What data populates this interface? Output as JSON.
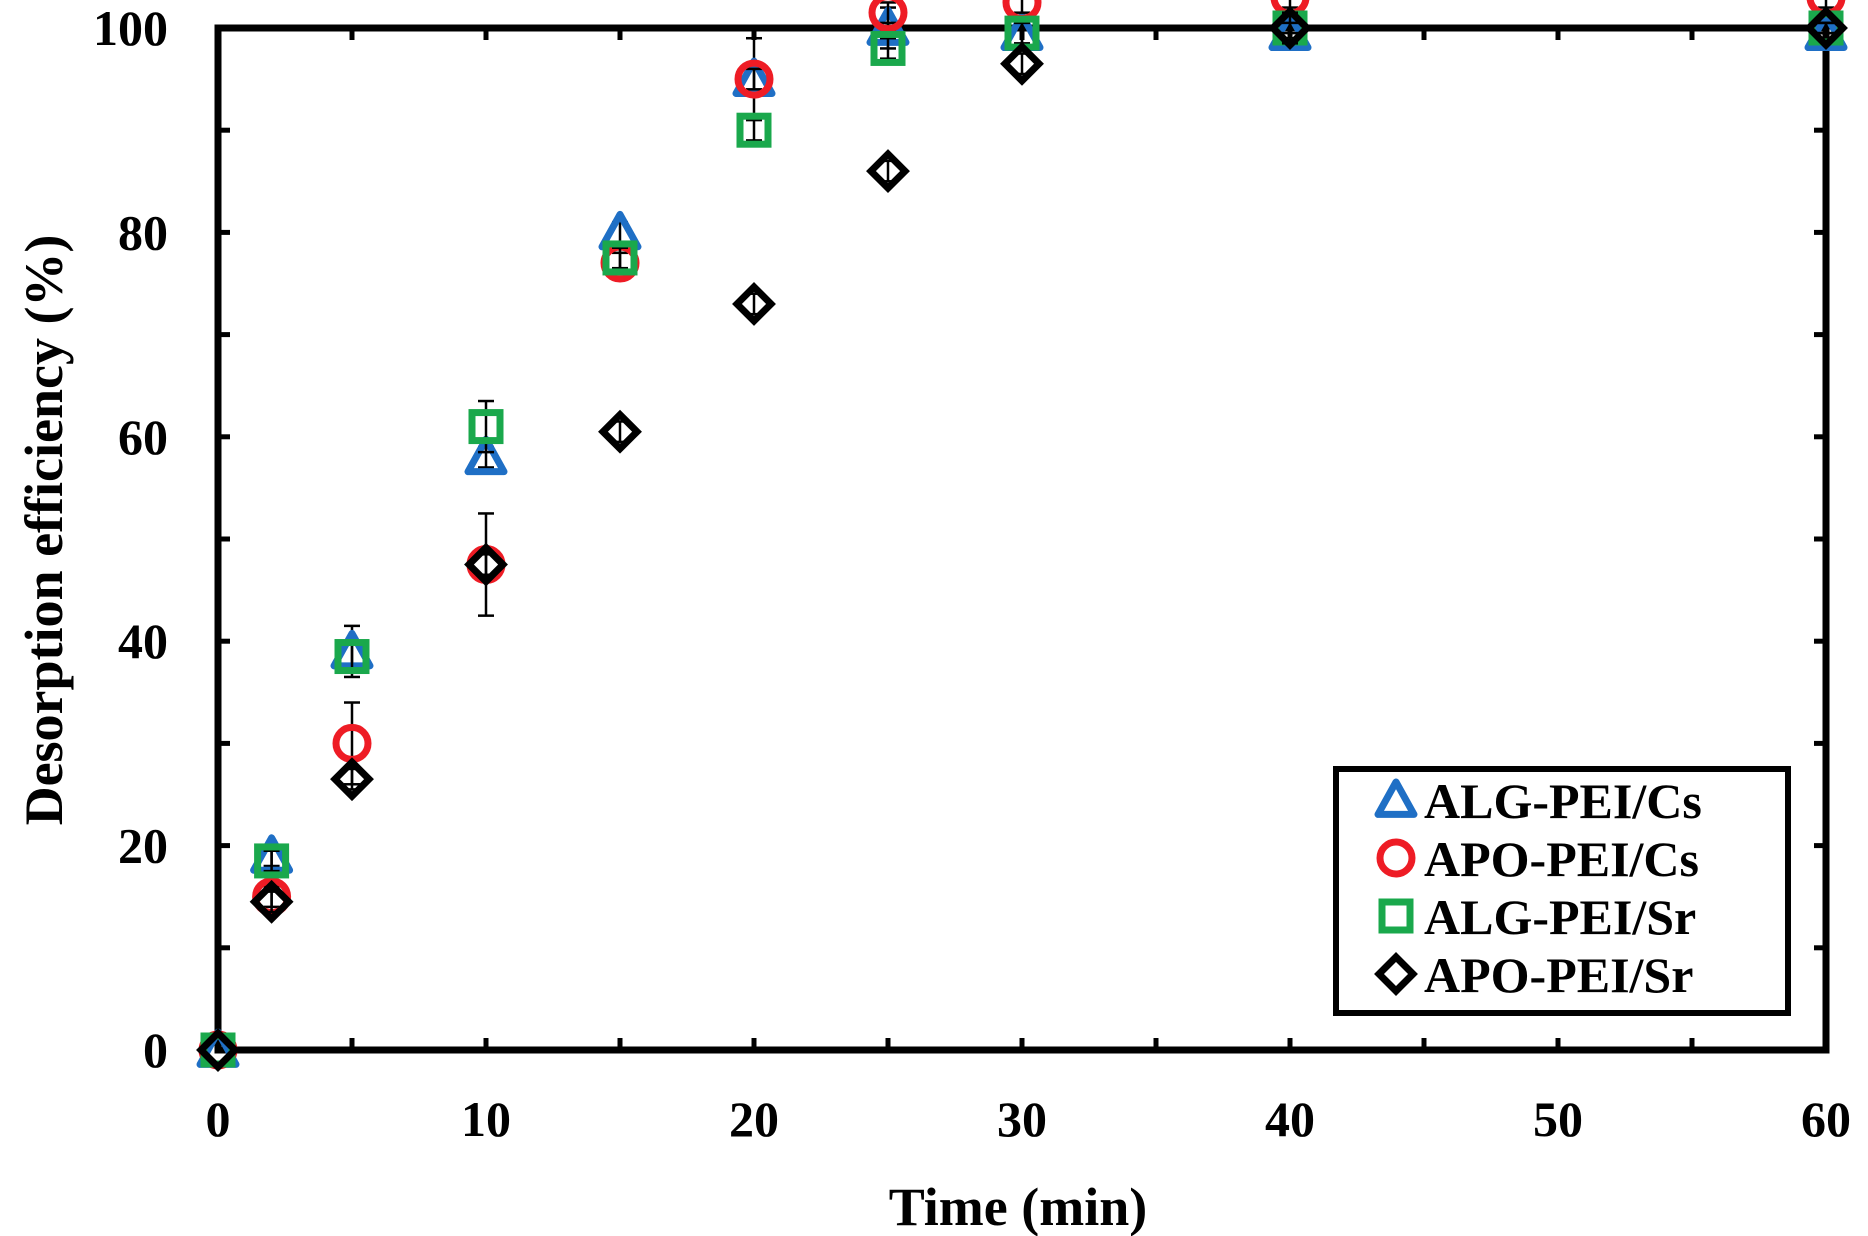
{
  "chart_data": {
    "type": "scatter",
    "title": "",
    "xlabel": "Time (min)",
    "ylabel": "Desorption efficiency (%)",
    "xlim": [
      0,
      60
    ],
    "ylim": [
      0,
      100
    ],
    "xticks": [
      "0",
      "10",
      "20",
      "30",
      "40",
      "50",
      "60"
    ],
    "yticks": [
      "0",
      "20",
      "40",
      "60",
      "80",
      "100"
    ],
    "reference_line": {
      "y": 100,
      "style": "dashed",
      "color": "#000000"
    },
    "legend_position": "bottom-right",
    "grid": false,
    "series": [
      {
        "name": "ALG-PEI/Cs",
        "marker": "triangle",
        "color": "#1f6fc5",
        "points": [
          {
            "x": 0,
            "y": 0,
            "err": 0
          },
          {
            "x": 2,
            "y": 19,
            "err": 1
          },
          {
            "x": 5,
            "y": 39,
            "err": 2.5
          },
          {
            "x": 10,
            "y": 58,
            "err": 1
          },
          {
            "x": 15,
            "y": 80,
            "err": 1
          },
          {
            "x": 20,
            "y": 95,
            "err": 4
          },
          {
            "x": 25,
            "y": 100,
            "err": 2
          },
          {
            "x": 30,
            "y": 99.5,
            "err": 1.5
          },
          {
            "x": 40,
            "y": 99.5,
            "err": 0.5
          },
          {
            "x": 60,
            "y": 99.5,
            "err": 0.5
          }
        ]
      },
      {
        "name": "APO-PEI/Cs",
        "marker": "circle",
        "color": "#ee1c25",
        "points": [
          {
            "x": 0,
            "y": 0,
            "err": 0
          },
          {
            "x": 2,
            "y": 15,
            "err": 1
          },
          {
            "x": 5,
            "y": 30,
            "err": 4
          },
          {
            "x": 10,
            "y": 47.5,
            "err": 1
          },
          {
            "x": 15,
            "y": 77,
            "err": 1
          },
          {
            "x": 20,
            "y": 95,
            "err": 1
          },
          {
            "x": 25,
            "y": 101.5,
            "err": 1
          },
          {
            "x": 30,
            "y": 102.5,
            "err": 1
          },
          {
            "x": 40,
            "y": 103,
            "err": 1
          },
          {
            "x": 60,
            "y": 103,
            "err": 1
          }
        ]
      },
      {
        "name": "ALG-PEI/Sr",
        "marker": "square",
        "color": "#1aa84c",
        "points": [
          {
            "x": 0,
            "y": 0,
            "err": 0
          },
          {
            "x": 2,
            "y": 18.5,
            "err": 1
          },
          {
            "x": 5,
            "y": 38.5,
            "err": 1.5
          },
          {
            "x": 10,
            "y": 61,
            "err": 2.5
          },
          {
            "x": 15,
            "y": 77.5,
            "err": 1
          },
          {
            "x": 20,
            "y": 90,
            "err": 1
          },
          {
            "x": 25,
            "y": 98,
            "err": 1
          },
          {
            "x": 30,
            "y": 99.5,
            "err": 1
          },
          {
            "x": 40,
            "y": 100,
            "err": 0.5
          },
          {
            "x": 60,
            "y": 100,
            "err": 0.5
          }
        ]
      },
      {
        "name": "APO-PEI/Sr",
        "marker": "diamond",
        "color": "#000000",
        "points": [
          {
            "x": 0,
            "y": 0,
            "err": 0
          },
          {
            "x": 2,
            "y": 14.5,
            "err": 1
          },
          {
            "x": 5,
            "y": 26.5,
            "err": 1
          },
          {
            "x": 10,
            "y": 47.5,
            "err": 5
          },
          {
            "x": 15,
            "y": 60.5,
            "err": 1
          },
          {
            "x": 20,
            "y": 73,
            "err": 1
          },
          {
            "x": 25,
            "y": 86,
            "err": 1
          },
          {
            "x": 30,
            "y": 96.5,
            "err": 1
          },
          {
            "x": 40,
            "y": 100,
            "err": 1.5
          },
          {
            "x": 60,
            "y": 100,
            "err": 0.5
          }
        ]
      }
    ]
  }
}
